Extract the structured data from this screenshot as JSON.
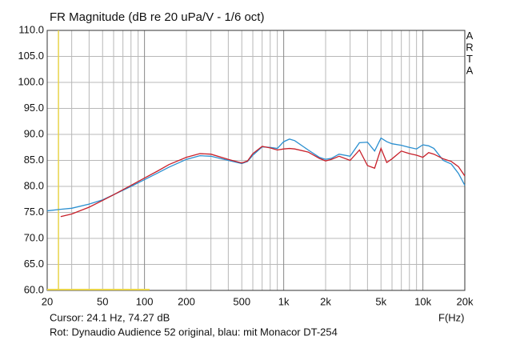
{
  "chart_data": {
    "type": "line",
    "title": "FR Magnitude (dB re 20 uPa/V - 1/6 oct)",
    "x_label": "F(Hz)",
    "watermark": "ARTA",
    "cursor": {
      "label": "Cursor: 24.1 Hz, 74.27 dB",
      "x": 24.1,
      "color": "#e8d44a"
    },
    "footnote": "Rot: Dynaudio Audience 52 original, blau: mit Monacor DT-254",
    "xscale": "log",
    "grid": true,
    "xlim": [
      20,
      20000
    ],
    "ylim": [
      60,
      110
    ],
    "xticks": [
      20,
      50,
      100,
      200,
      500,
      {
        "value": 1000,
        "label": "1k"
      },
      {
        "value": 2000,
        "label": "2k"
      },
      {
        "value": 5000,
        "label": "5k"
      },
      {
        "value": 10000,
        "label": "10k"
      },
      {
        "value": 20000,
        "label": "20k"
      }
    ],
    "x_minor_ticks": [
      30,
      40,
      60,
      70,
      80,
      90,
      300,
      400,
      600,
      700,
      800,
      900,
      3000,
      4000,
      6000,
      7000,
      8000,
      9000
    ],
    "yticks": [
      {
        "value": 60,
        "label": "60.0"
      },
      {
        "value": 65,
        "label": "65.0"
      },
      {
        "value": 70,
        "label": "70.0"
      },
      {
        "value": 75,
        "label": "75.0"
      },
      {
        "value": 80,
        "label": "80.0"
      },
      {
        "value": 85,
        "label": "85.0"
      },
      {
        "value": 90,
        "label": "90.0"
      },
      {
        "value": 95,
        "label": "95.0"
      },
      {
        "value": 100,
        "label": "100.0"
      },
      {
        "value": 105,
        "label": "105.0"
      },
      {
        "value": 110,
        "label": "110.0"
      }
    ],
    "x": [
      20,
      25,
      30,
      40,
      50,
      60,
      80,
      100,
      125,
      150,
      200,
      250,
      300,
      400,
      500,
      550,
      600,
      700,
      800,
      900,
      1000,
      1100,
      1200,
      1500,
      1800,
      2000,
      2200,
      2500,
      3000,
      3500,
      4000,
      4500,
      5000,
      5500,
      6000,
      7000,
      8000,
      9000,
      10000,
      11000,
      12000,
      14000,
      16000,
      18000,
      20000
    ],
    "series": [
      {
        "color": "#2a8fd0",
        "values": [
          75.3,
          75.6,
          75.8,
          76.6,
          77.4,
          78.4,
          80.0,
          81.3,
          82.6,
          83.7,
          85.2,
          85.9,
          85.8,
          85.0,
          84.4,
          84.8,
          86.0,
          87.6,
          87.5,
          87.3,
          88.6,
          89.1,
          88.8,
          87.0,
          85.6,
          85.2,
          85.4,
          86.2,
          85.8,
          88.4,
          88.5,
          86.8,
          89.3,
          88.6,
          88.2,
          87.9,
          87.5,
          87.2,
          88.0,
          87.8,
          87.3,
          85.0,
          84.3,
          82.5,
          80.2
        ]
      },
      {
        "color": "#c8202a",
        "values": [
          null,
          74.2,
          74.7,
          76.0,
          77.3,
          78.4,
          80.2,
          81.6,
          83.0,
          84.2,
          85.6,
          86.3,
          86.2,
          85.2,
          84.5,
          84.9,
          86.3,
          87.7,
          87.4,
          87.0,
          87.2,
          87.3,
          87.2,
          86.6,
          85.4,
          84.9,
          85.2,
          85.8,
          85.0,
          87.0,
          84.0,
          83.5,
          87.3,
          84.6,
          85.3,
          86.8,
          86.3,
          86.0,
          85.6,
          86.5,
          86.2,
          85.3,
          84.8,
          83.8,
          82.0
        ]
      }
    ]
  }
}
